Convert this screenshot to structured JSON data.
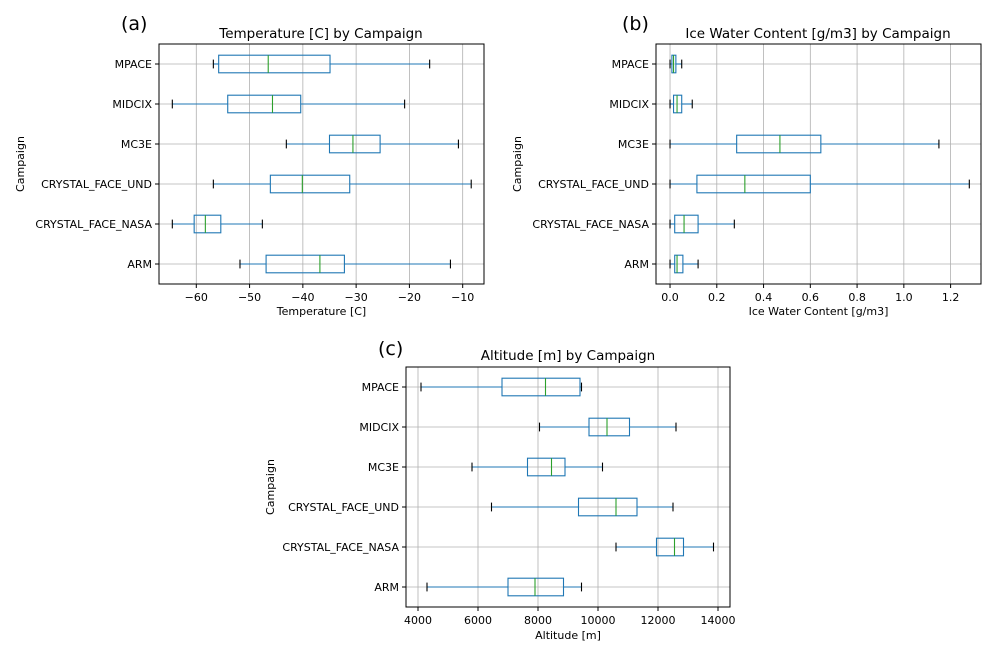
{
  "colors": {
    "box": "#1f77b4",
    "median": "#2ca02c",
    "grid": "#b0b0b0",
    "axis": "#000000"
  },
  "chart_data": [
    {
      "type": "boxplot",
      "panel_label": "(a)",
      "title": "Temperature [C] by Campaign",
      "xlabel": "Temperature [C]",
      "ylabel": "Campaign",
      "xlim": [
        -67,
        -6
      ],
      "xticks": [
        -60,
        -50,
        -40,
        -30,
        -20,
        -10
      ],
      "xtick_labels": [
        "−60",
        "−50",
        "−40",
        "−30",
        "−20",
        "−10"
      ],
      "grid": true,
      "categories": [
        "MPACE",
        "MIDCIX",
        "MC3E",
        "CRYSTAL_FACE_UND",
        "CRYSTAL_FACE_NASA",
        "ARM"
      ],
      "boxes": [
        {
          "whisker_low": -56.8,
          "q1": -55.8,
          "median": -46.5,
          "q3": -34.9,
          "whisker_high": -16.2
        },
        {
          "whisker_low": -64.5,
          "q1": -54.1,
          "median": -45.7,
          "q3": -40.4,
          "whisker_high": -20.9
        },
        {
          "whisker_low": -43.1,
          "q1": -35.0,
          "median": -30.6,
          "q3": -25.5,
          "whisker_high": -10.8
        },
        {
          "whisker_low": -56.8,
          "q1": -46.1,
          "median": -40.1,
          "q3": -31.2,
          "whisker_high": -8.4
        },
        {
          "whisker_low": -64.5,
          "q1": -60.4,
          "median": -58.3,
          "q3": -55.4,
          "whisker_high": -47.6
        },
        {
          "whisker_low": -51.8,
          "q1": -46.9,
          "median": -36.8,
          "q3": -32.2,
          "whisker_high": -12.3
        }
      ]
    },
    {
      "type": "boxplot",
      "panel_label": "(b)",
      "title": "Ice Water Content [g/m3] by Campaign",
      "xlabel": "Ice Water Content [g/m3]",
      "ylabel": "Campaign",
      "xlim": [
        -0.06,
        1.33
      ],
      "xticks": [
        0.0,
        0.2,
        0.4,
        0.6,
        0.8,
        1.0,
        1.2
      ],
      "xtick_labels": [
        "0.0",
        "0.2",
        "0.4",
        "0.6",
        "0.8",
        "1.0",
        "1.2"
      ],
      "grid": true,
      "categories": [
        "MPACE",
        "MIDCIX",
        "MC3E",
        "CRYSTAL_FACE_UND",
        "CRYSTAL_FACE_NASA",
        "ARM"
      ],
      "boxes": [
        {
          "whisker_low": 0.0,
          "q1": 0.008,
          "median": 0.015,
          "q3": 0.025,
          "whisker_high": 0.05
        },
        {
          "whisker_low": 0.0,
          "q1": 0.015,
          "median": 0.03,
          "q3": 0.05,
          "whisker_high": 0.095
        },
        {
          "whisker_low": 0.0,
          "q1": 0.285,
          "median": 0.47,
          "q3": 0.645,
          "whisker_high": 1.15
        },
        {
          "whisker_low": 0.0,
          "q1": 0.115,
          "median": 0.32,
          "q3": 0.6,
          "whisker_high": 1.28
        },
        {
          "whisker_low": 0.0,
          "q1": 0.02,
          "median": 0.06,
          "q3": 0.12,
          "whisker_high": 0.275
        },
        {
          "whisker_low": 0.0,
          "q1": 0.02,
          "median": 0.03,
          "q3": 0.055,
          "whisker_high": 0.12
        }
      ]
    },
    {
      "type": "boxplot",
      "panel_label": "(c)",
      "title": "Altitude [m] by Campaign",
      "xlabel": "Altitude [m]",
      "ylabel": "Campaign",
      "xlim": [
        3600,
        14400
      ],
      "xticks": [
        4000,
        6000,
        8000,
        10000,
        12000,
        14000
      ],
      "xtick_labels": [
        "4000",
        "6000",
        "8000",
        "10000",
        "12000",
        "14000"
      ],
      "grid": true,
      "categories": [
        "MPACE",
        "MIDCIX",
        "MC3E",
        "CRYSTAL_FACE_UND",
        "CRYSTAL_FACE_NASA",
        "ARM"
      ],
      "boxes": [
        {
          "whisker_low": 4100,
          "q1": 6800,
          "median": 8250,
          "q3": 9400,
          "whisker_high": 9450
        },
        {
          "whisker_low": 8050,
          "q1": 9700,
          "median": 10300,
          "q3": 11050,
          "whisker_high": 12600
        },
        {
          "whisker_low": 5800,
          "q1": 7650,
          "median": 8450,
          "q3": 8900,
          "whisker_high": 10150
        },
        {
          "whisker_low": 6450,
          "q1": 9350,
          "median": 10600,
          "q3": 11300,
          "whisker_high": 12500
        },
        {
          "whisker_low": 10600,
          "q1": 11950,
          "median": 12550,
          "q3": 12850,
          "whisker_high": 13850
        },
        {
          "whisker_low": 4300,
          "q1": 7000,
          "median": 7900,
          "q3": 8850,
          "whisker_high": 9450
        }
      ]
    }
  ]
}
